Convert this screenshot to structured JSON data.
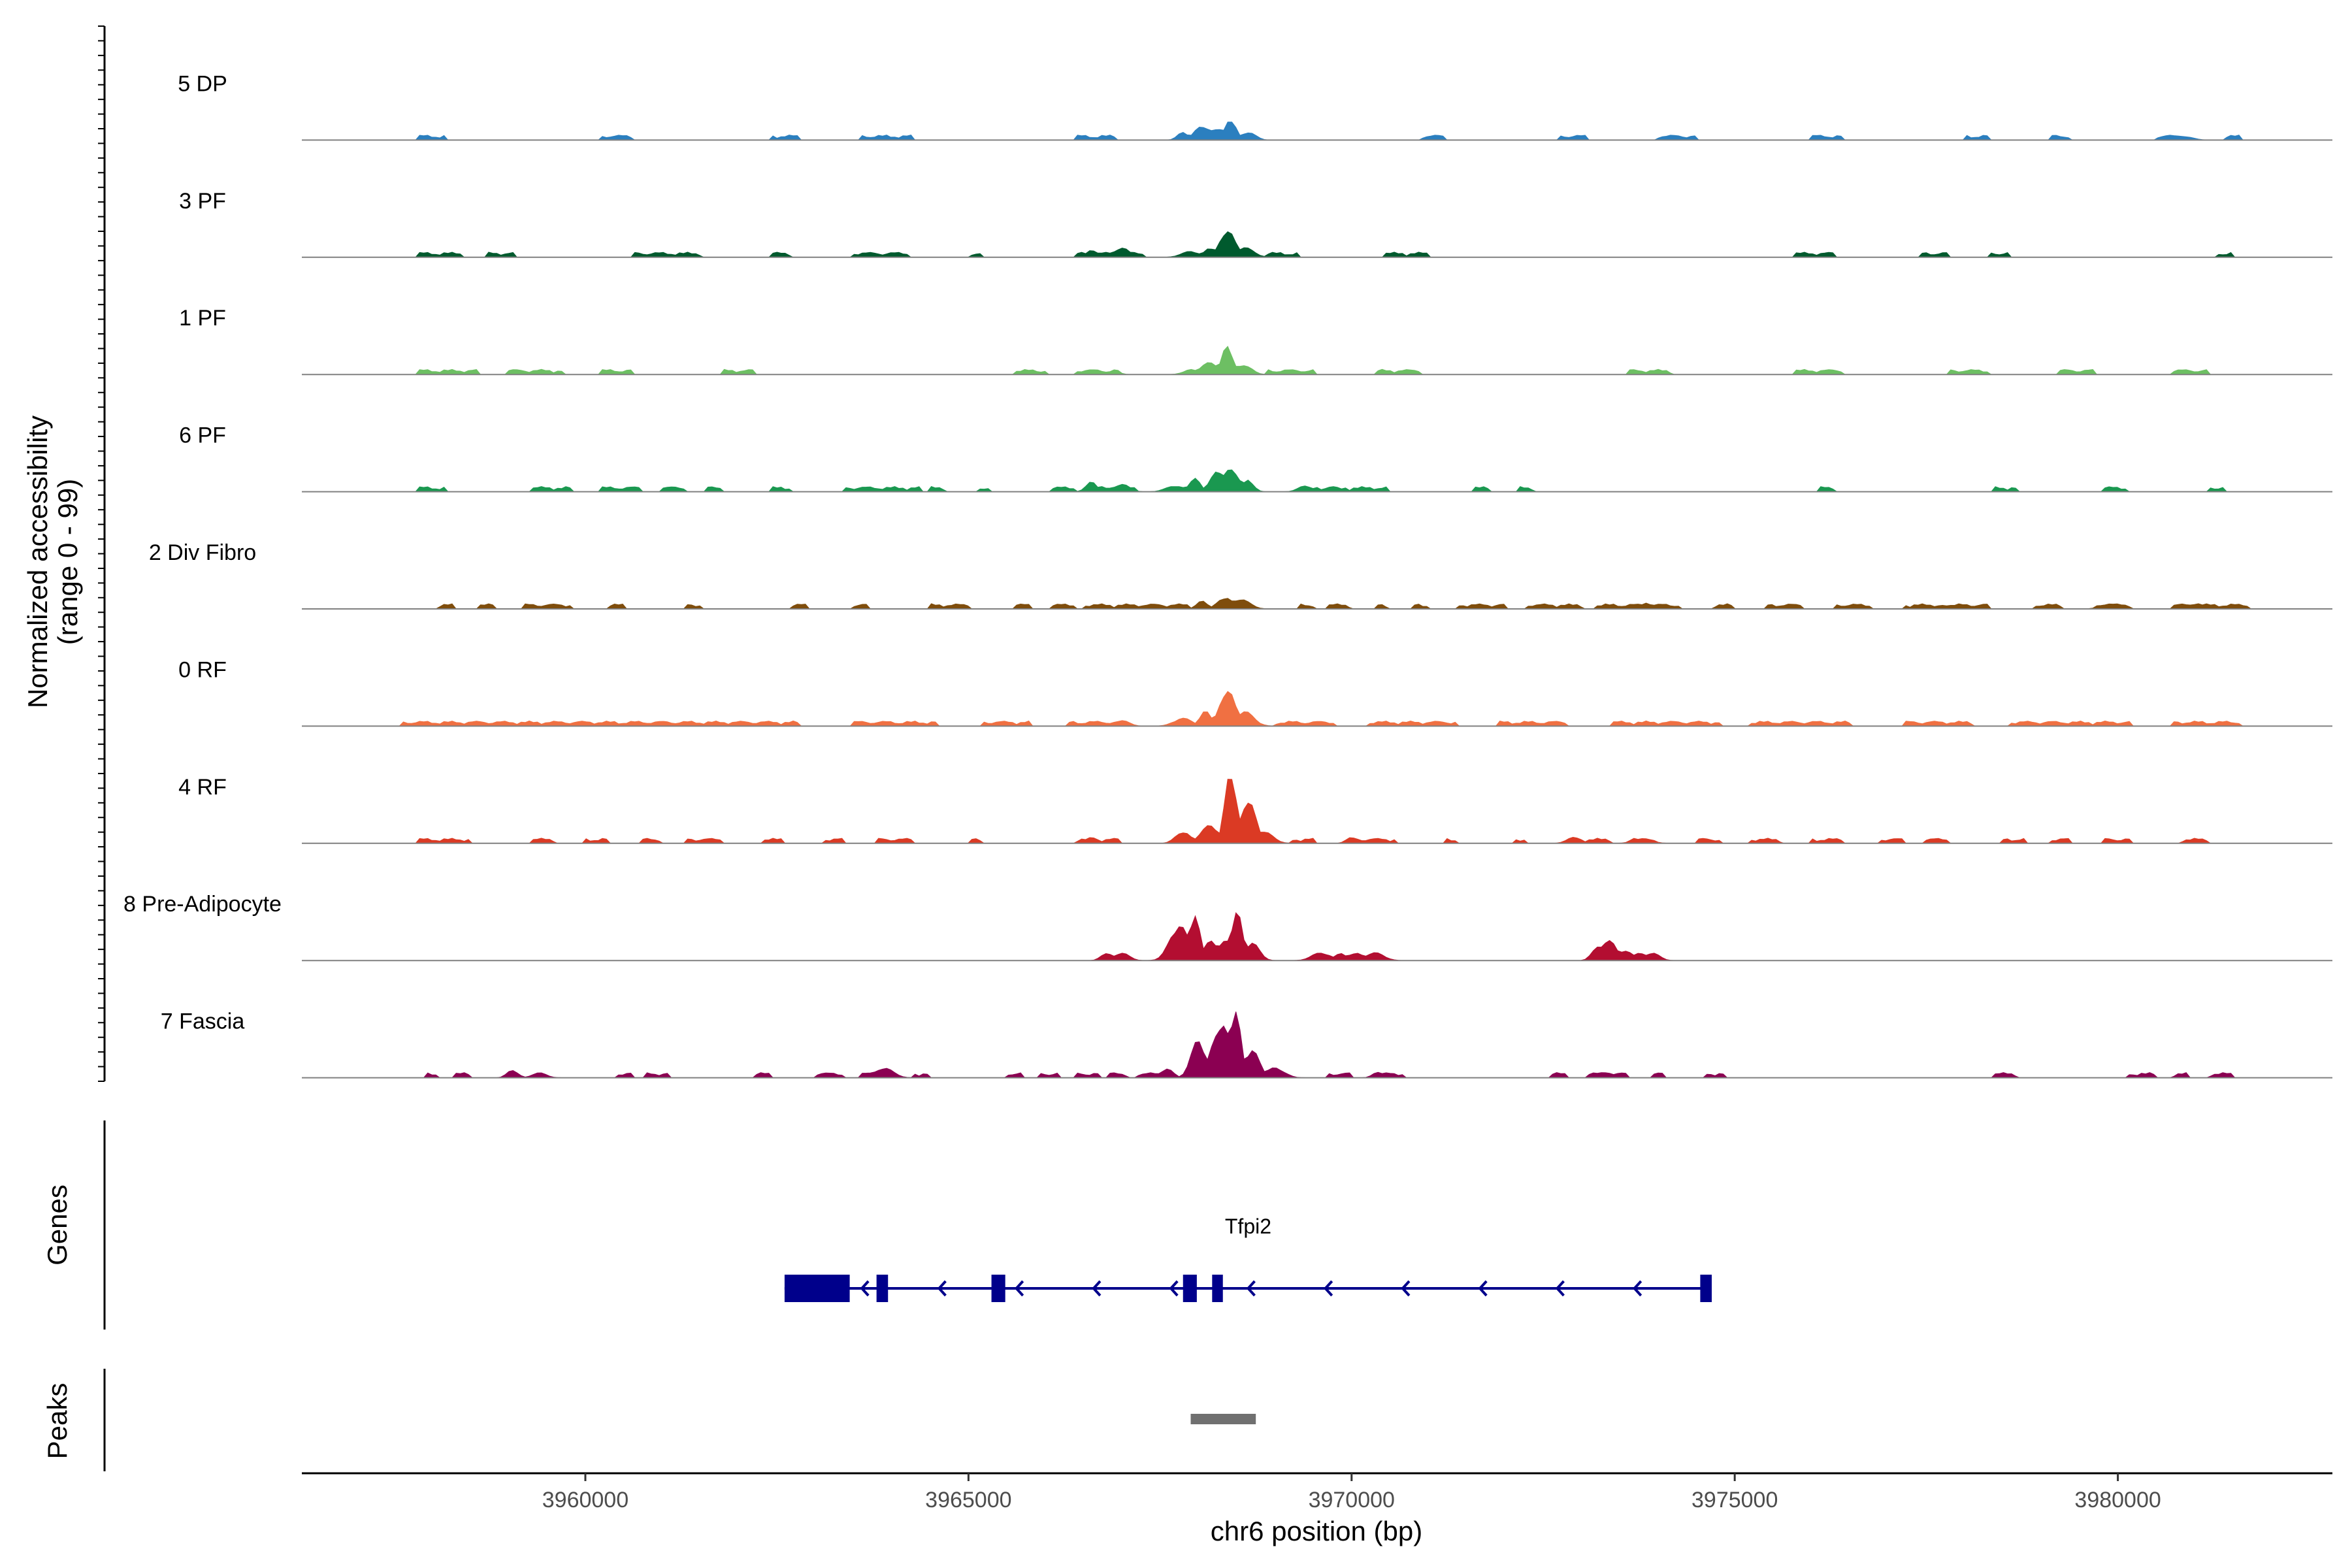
{
  "chart_data": {
    "type": "area",
    "title": "",
    "ylabel": "Normalized accessibility\n(range 0 - 99)",
    "xlabel": "chr6 position (bp)",
    "xlim": [
      3956300,
      3982800
    ],
    "ylim": [
      0,
      99
    ],
    "xticks": [
      3960000,
      3965000,
      3970000,
      3975000,
      3980000
    ],
    "tracks": [
      {
        "name": "5 DP",
        "color": "#2b7fbf",
        "background": [
          [
            3957800,
            3958200
          ],
          [
            3960200,
            3960600
          ],
          [
            3962400,
            3962800
          ],
          [
            3963600,
            3964300
          ],
          [
            3966400,
            3966900
          ],
          [
            3970900,
            3971200
          ],
          [
            3972700,
            3973100
          ],
          [
            3974000,
            3974500
          ],
          [
            3976000,
            3976400
          ],
          [
            3978000,
            3978300
          ],
          [
            3979100,
            3979400
          ],
          [
            3980500,
            3980900
          ],
          [
            3981400,
            3981600
          ]
        ],
        "peaks": [
          [
            3967800,
            8
          ],
          [
            3968050,
            15
          ],
          [
            3968250,
            12
          ],
          [
            3968420,
            22
          ],
          [
            3968650,
            8
          ],
          [
            3980850,
            4
          ]
        ]
      },
      {
        "name": "3 PF",
        "color": "#005a2e",
        "background": [
          [
            3957800,
            3958400
          ],
          [
            3958700,
            3959100
          ],
          [
            3960600,
            3961500
          ],
          [
            3962400,
            3962700
          ],
          [
            3963500,
            3964200
          ],
          [
            3965000,
            3965200
          ],
          [
            3966400,
            3967300
          ],
          [
            3968900,
            3969300
          ],
          [
            3970400,
            3971000
          ],
          [
            3975800,
            3976300
          ],
          [
            3977400,
            3977800
          ],
          [
            3978300,
            3978600
          ],
          [
            3981300,
            3981500
          ]
        ],
        "peaks": [
          [
            3966600,
            7
          ],
          [
            3967000,
            10
          ],
          [
            3967900,
            6
          ],
          [
            3968150,
            10
          ],
          [
            3968380,
            28
          ],
          [
            3968600,
            10
          ]
        ]
      },
      {
        "name": "1 PF",
        "color": "#6dbf63",
        "background": [
          [
            3957800,
            3958600
          ],
          [
            3959000,
            3959700
          ],
          [
            3960200,
            3960600
          ],
          [
            3961800,
            3962200
          ],
          [
            3965600,
            3966000
          ],
          [
            3966400,
            3967000
          ],
          [
            3968900,
            3969500
          ],
          [
            3970300,
            3970900
          ],
          [
            3973600,
            3974200
          ],
          [
            3975800,
            3976400
          ],
          [
            3977800,
            3978300
          ],
          [
            3979200,
            3979700
          ],
          [
            3980700,
            3981200
          ]
        ],
        "peaks": [
          [
            3966900,
            4
          ],
          [
            3967900,
            5
          ],
          [
            3968150,
            12
          ],
          [
            3968380,
            30
          ],
          [
            3968600,
            10
          ]
        ]
      },
      {
        "name": "6 PF",
        "color": "#1a9850",
        "background": [
          [
            3957800,
            3958200
          ],
          [
            3959300,
            3959800
          ],
          [
            3960200,
            3960700
          ],
          [
            3961000,
            3961300
          ],
          [
            3961600,
            3961800
          ],
          [
            3962400,
            3962700
          ],
          [
            3963400,
            3964400
          ],
          [
            3964500,
            3964700
          ],
          [
            3965100,
            3965300
          ],
          [
            3966100,
            3966400
          ],
          [
            3966700,
            3967200
          ],
          [
            3969300,
            3969600
          ],
          [
            3969900,
            3970500
          ],
          [
            3971600,
            3971800
          ],
          [
            3972200,
            3972400
          ],
          [
            3976100,
            3976300
          ],
          [
            3978400,
            3978700
          ],
          [
            3979800,
            3980100
          ],
          [
            3981200,
            3981400
          ]
        ],
        "peaks": [
          [
            3966600,
            10
          ],
          [
            3967000,
            8
          ],
          [
            3967700,
            6
          ],
          [
            3967950,
            14
          ],
          [
            3968250,
            20
          ],
          [
            3968420,
            22
          ],
          [
            3968650,
            12
          ],
          [
            3969400,
            6
          ],
          [
            3969750,
            5
          ]
        ]
      },
      {
        "name": "2 Div Fibro",
        "color": "#7f4d0c",
        "background": [
          [
            3958100,
            3958300
          ],
          [
            3958600,
            3958800
          ],
          [
            3959200,
            3959800
          ],
          [
            3960300,
            3960500
          ],
          [
            3961300,
            3961500
          ],
          [
            3962700,
            3962900
          ],
          [
            3963500,
            3963700
          ],
          [
            3964500,
            3965000
          ],
          [
            3965600,
            3965800
          ],
          [
            3966100,
            3966400
          ],
          [
            3966500,
            3967900
          ],
          [
            3969300,
            3969500
          ],
          [
            3969700,
            3970000
          ],
          [
            3970300,
            3970500
          ],
          [
            3970800,
            3971000
          ],
          [
            3971400,
            3972000
          ],
          [
            3972300,
            3973000
          ],
          [
            3973200,
            3974300
          ],
          [
            3974700,
            3975000
          ],
          [
            3975400,
            3975900
          ],
          [
            3976300,
            3976800
          ],
          [
            3977200,
            3977600
          ],
          [
            3977800,
            3978300
          ],
          [
            3978900,
            3979300
          ],
          [
            3979700,
            3980200
          ],
          [
            3980700,
            3981700
          ]
        ],
        "peaks": [
          [
            3968050,
            8
          ],
          [
            3968350,
            12
          ],
          [
            3968550,
            10
          ],
          [
            3973850,
            6
          ],
          [
            3977700,
            4
          ],
          [
            3979900,
            5
          ],
          [
            3981050,
            6
          ]
        ]
      },
      {
        "name": "0 RF",
        "color": "#f07042",
        "background": [
          [
            3957600,
            3962800
          ],
          [
            3963500,
            3964600
          ],
          [
            3965200,
            3965800
          ],
          [
            3966300,
            3967000
          ],
          [
            3969000,
            3969800
          ],
          [
            3970200,
            3971400
          ],
          [
            3971900,
            3972800
          ],
          [
            3973400,
            3974800
          ],
          [
            3975200,
            3976500
          ],
          [
            3977200,
            3978100
          ],
          [
            3978600,
            3980200
          ],
          [
            3980700,
            3981600
          ]
        ],
        "peaks": [
          [
            3966600,
            4
          ],
          [
            3967000,
            6
          ],
          [
            3967800,
            8
          ],
          [
            3968100,
            16
          ],
          [
            3968380,
            38
          ],
          [
            3968600,
            15
          ]
        ]
      },
      {
        "name": "4 RF",
        "color": "#db3a24",
        "background": [
          [
            3957800,
            3958500
          ],
          [
            3959300,
            3959600
          ],
          [
            3960000,
            3960300
          ],
          [
            3960700,
            3961000
          ],
          [
            3961300,
            3961800
          ],
          [
            3962300,
            3962600
          ],
          [
            3963100,
            3963400
          ],
          [
            3963800,
            3964300
          ],
          [
            3965000,
            3965200
          ],
          [
            3966400,
            3967000
          ],
          [
            3969200,
            3969500
          ],
          [
            3970000,
            3970600
          ],
          [
            3971200,
            3971400
          ],
          [
            3972100,
            3972300
          ],
          [
            3972800,
            3973400
          ],
          [
            3973600,
            3974000
          ],
          [
            3974500,
            3974800
          ],
          [
            3975200,
            3975600
          ],
          [
            3976000,
            3976400
          ],
          [
            3976900,
            3977200
          ],
          [
            3977500,
            3977800
          ],
          [
            3978500,
            3978800
          ],
          [
            3979100,
            3979400
          ],
          [
            3979800,
            3980200
          ],
          [
            3980800,
            3981200
          ]
        ],
        "peaks": [
          [
            3966600,
            6
          ],
          [
            3967800,
            12
          ],
          [
            3968150,
            18
          ],
          [
            3968420,
            78
          ],
          [
            3968650,
            45
          ],
          [
            3968850,
            12
          ],
          [
            3970000,
            6
          ],
          [
            3972900,
            6
          ],
          [
            3973800,
            5
          ]
        ]
      },
      {
        "name": "8 Pre-Adipocyte",
        "color": "#b30e31",
        "background": [],
        "peaks": [
          [
            3966800,
            8
          ],
          [
            3967000,
            8
          ],
          [
            3967750,
            36
          ],
          [
            3967950,
            46
          ],
          [
            3968150,
            20
          ],
          [
            3968350,
            20
          ],
          [
            3968500,
            52
          ],
          [
            3968700,
            18
          ],
          [
            3969600,
            8
          ],
          [
            3969850,
            8
          ],
          [
            3970050,
            8
          ],
          [
            3970300,
            8
          ],
          [
            3973200,
            14
          ],
          [
            3973350,
            22
          ],
          [
            3973550,
            10
          ],
          [
            3973750,
            8
          ],
          [
            3973920,
            8
          ]
        ]
      },
      {
        "name": "7 Fascia",
        "color": "#8b0052",
        "background": [
          [
            3957900,
            3958100
          ],
          [
            3958300,
            3958500
          ],
          [
            3960400,
            3960600
          ],
          [
            3960800,
            3961100
          ],
          [
            3962200,
            3962400
          ],
          [
            3963000,
            3963400
          ],
          [
            3963600,
            3963800
          ],
          [
            3964300,
            3964500
          ],
          [
            3965500,
            3965700
          ],
          [
            3965900,
            3966200
          ],
          [
            3966400,
            3966700
          ],
          [
            3966800,
            3967100
          ],
          [
            3967200,
            3967500
          ],
          [
            3969700,
            3970000
          ],
          [
            3970300,
            3970700
          ],
          [
            3972600,
            3972800
          ],
          [
            3973100,
            3973600
          ],
          [
            3973900,
            3974100
          ],
          [
            3974600,
            3974900
          ],
          [
            3978400,
            3978700
          ],
          [
            3980100,
            3980500
          ],
          [
            3980700,
            3980900
          ],
          [
            3981200,
            3981500
          ]
        ],
        "peaks": [
          [
            3959050,
            8
          ],
          [
            3959400,
            5
          ],
          [
            3963900,
            10
          ],
          [
            3967600,
            10
          ],
          [
            3968000,
            38
          ],
          [
            3968300,
            55
          ],
          [
            3968480,
            72
          ],
          [
            3968700,
            28
          ],
          [
            3969000,
            10
          ],
          [
            3970350,
            6
          ],
          [
            3973300,
            6
          ]
        ]
      }
    ],
    "genes": {
      "title": "Genes",
      "name": "Tfpi2",
      "color": "#00008b",
      "start": 3962600,
      "end": 3974700,
      "strand": "-",
      "exons": [
        [
          3962600,
          3963450
        ],
        [
          3963800,
          3963950
        ],
        [
          3965300,
          3965480
        ],
        [
          3967800,
          3967980
        ],
        [
          3968180,
          3968320
        ],
        [
          3974550,
          3974700
        ]
      ]
    },
    "peaks_track": {
      "title": "Peaks",
      "color": "#707070",
      "regions": [
        [
          3967900,
          3968750
        ]
      ]
    }
  }
}
